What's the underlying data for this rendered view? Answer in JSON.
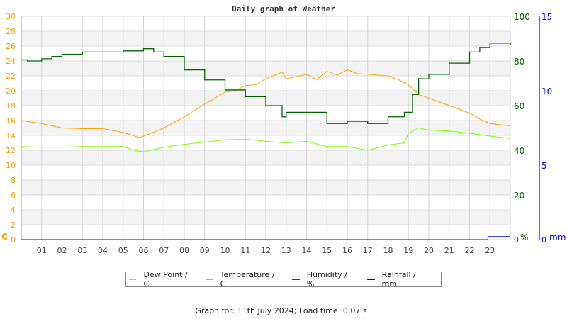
{
  "chart_data": {
    "type": "line",
    "title": "Daily graph of Weather",
    "xlabel": "",
    "x_ticks": [
      "01",
      "02",
      "03",
      "04",
      "05",
      "06",
      "07",
      "08",
      "09",
      "10",
      "11",
      "12",
      "13",
      "14",
      "15",
      "16",
      "17",
      "18",
      "19",
      "20",
      "21",
      "22",
      "23"
    ],
    "xlim": [
      0,
      24
    ],
    "y_left": {
      "label": "C",
      "range": [
        0,
        30
      ],
      "ticks": [
        0,
        2,
        4,
        6,
        8,
        10,
        12,
        14,
        16,
        18,
        20,
        22,
        24,
        26,
        28,
        30
      ],
      "color": "#FFA500"
    },
    "y_right": {
      "label": "%",
      "range": [
        0,
        100
      ],
      "ticks": [
        0,
        20,
        40,
        60,
        80,
        100
      ],
      "color": "#006400"
    },
    "y_rain": {
      "label": "mm",
      "range": [
        0,
        15
      ],
      "ticks": [
        0,
        5,
        10,
        15
      ],
      "color": "#0000FF"
    },
    "grid": true,
    "legend_placement": "bottom",
    "series": [
      {
        "name": "Dew Point / C",
        "axis": "left",
        "color": "#80FF00",
        "x": [
          0,
          1,
          2,
          3,
          4,
          5,
          5.5,
          6,
          7,
          8,
          9,
          10,
          11,
          12,
          13,
          14,
          15,
          16,
          17,
          18,
          18.8,
          19,
          19.5,
          20,
          21,
          22,
          23,
          24
        ],
        "y": [
          12.5,
          12.4,
          12.4,
          12.5,
          12.5,
          12.5,
          12.0,
          11.8,
          12.4,
          12.8,
          13.1,
          13.4,
          13.5,
          13.2,
          13.0,
          13.2,
          12.5,
          12.5,
          12.0,
          12.7,
          13.0,
          14.3,
          15.0,
          14.7,
          14.6,
          14.3,
          13.9,
          13.6
        ]
      },
      {
        "name": "Temperature / C",
        "axis": "left",
        "color": "#FFA500",
        "x": [
          0,
          1,
          2,
          3,
          4,
          5,
          5.8,
          6,
          7,
          8,
          9,
          10,
          10.5,
          11,
          11.5,
          12,
          12.8,
          13,
          14,
          14.5,
          15,
          15.5,
          16,
          16.5,
          17,
          18,
          18.5,
          19,
          19.5,
          20,
          21,
          22,
          22.5,
          23,
          24
        ],
        "y": [
          16.0,
          15.6,
          15.0,
          14.9,
          14.9,
          14.4,
          13.7,
          13.9,
          15.0,
          16.5,
          18.2,
          19.8,
          20.0,
          20.7,
          20.8,
          21.6,
          22.5,
          21.6,
          22.2,
          21.5,
          22.6,
          22.1,
          22.8,
          22.3,
          22.2,
          22.0,
          21.5,
          20.8,
          19.5,
          19.0,
          18.0,
          17.0,
          16.2,
          15.6,
          15.3
        ]
      },
      {
        "name": "Humidity / %",
        "axis": "right",
        "color": "#006400",
        "x": [
          0,
          0.3,
          1,
          1.5,
          2,
          3,
          5,
          6,
          6.5,
          7,
          8,
          9,
          10,
          11,
          12,
          12.8,
          13,
          14,
          15,
          16,
          17,
          18,
          18.8,
          19.2,
          19.5,
          20,
          21,
          22,
          22.5,
          23,
          23.9,
          24
        ],
        "y": [
          80.5,
          80,
          81,
          82,
          83,
          84,
          84.5,
          85.5,
          84,
          82,
          76,
          71.5,
          67,
          64,
          60,
          55,
          57,
          57,
          52,
          53,
          52,
          55,
          57,
          65,
          72,
          74,
          79,
          84,
          86,
          88,
          88,
          87
        ]
      },
      {
        "name": "Rainfall / mm",
        "axis": "rain",
        "color": "#0000FF",
        "x": [
          0,
          22.9,
          22.9,
          24
        ],
        "y": [
          0,
          0,
          0.2,
          0.2
        ]
      }
    ]
  },
  "footer": "Graph for: 11th July 2024; Load time: 0.07 s"
}
